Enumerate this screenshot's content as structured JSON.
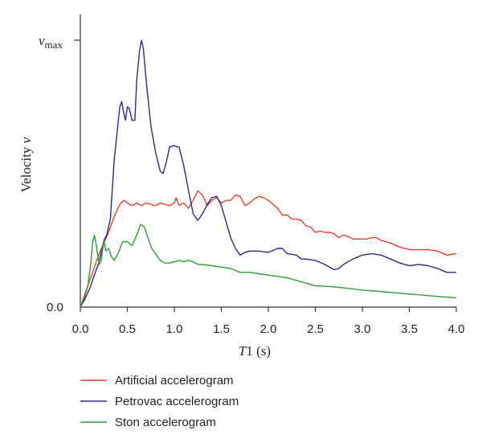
{
  "chart_data": {
    "type": "line",
    "xlabel_prefix": "T",
    "xlabel_rest": "1 (s)",
    "ylabel_prefix": "Velocity ",
    "ylabel_var": "v",
    "y_top_var": "v",
    "y_top_sub": "max",
    "y_bottom_label": "0.0",
    "xlim": [
      0,
      4
    ],
    "ylim": [
      0,
      1
    ],
    "x_ticks": [
      "0.0",
      "0.5",
      "1.0",
      "1.5",
      "2.0",
      "2.5",
      "3.0",
      "3.5",
      "4.0"
    ],
    "grid": false,
    "legend_position": "bottom",
    "series": [
      {
        "name": "Artificial accelerogram",
        "color": "#e8402a",
        "points": [
          [
            0,
            0
          ],
          [
            0.05,
            0.05
          ],
          [
            0.1,
            0.1
          ],
          [
            0.15,
            0.15
          ],
          [
            0.2,
            0.2
          ],
          [
            0.25,
            0.24
          ],
          [
            0.3,
            0.28
          ],
          [
            0.35,
            0.33
          ],
          [
            0.4,
            0.37
          ],
          [
            0.43,
            0.39
          ],
          [
            0.47,
            0.4
          ],
          [
            0.5,
            0.39
          ],
          [
            0.55,
            0.38
          ],
          [
            0.6,
            0.39
          ],
          [
            0.65,
            0.38
          ],
          [
            0.7,
            0.39
          ],
          [
            0.75,
            0.385
          ],
          [
            0.8,
            0.38
          ],
          [
            0.85,
            0.39
          ],
          [
            0.9,
            0.385
          ],
          [
            0.95,
            0.38
          ],
          [
            1.0,
            0.39
          ],
          [
            1.02,
            0.41
          ],
          [
            1.05,
            0.38
          ],
          [
            1.1,
            0.39
          ],
          [
            1.15,
            0.37
          ],
          [
            1.2,
            0.4
          ],
          [
            1.25,
            0.435
          ],
          [
            1.3,
            0.42
          ],
          [
            1.35,
            0.38
          ],
          [
            1.4,
            0.4
          ],
          [
            1.45,
            0.41
          ],
          [
            1.5,
            0.39
          ],
          [
            1.55,
            0.4
          ],
          [
            1.6,
            0.4
          ],
          [
            1.65,
            0.42
          ],
          [
            1.7,
            0.415
          ],
          [
            1.75,
            0.38
          ],
          [
            1.8,
            0.39
          ],
          [
            1.85,
            0.405
          ],
          [
            1.9,
            0.415
          ],
          [
            1.95,
            0.41
          ],
          [
            2.0,
            0.4
          ],
          [
            2.05,
            0.385
          ],
          [
            2.1,
            0.37
          ],
          [
            2.15,
            0.345
          ],
          [
            2.2,
            0.345
          ],
          [
            2.25,
            0.33
          ],
          [
            2.3,
            0.33
          ],
          [
            2.35,
            0.325
          ],
          [
            2.4,
            0.305
          ],
          [
            2.45,
            0.3
          ],
          [
            2.5,
            0.28
          ],
          [
            2.55,
            0.285
          ],
          [
            2.6,
            0.28
          ],
          [
            2.65,
            0.28
          ],
          [
            2.7,
            0.275
          ],
          [
            2.75,
            0.26
          ],
          [
            2.8,
            0.27
          ],
          [
            2.85,
            0.265
          ],
          [
            2.9,
            0.255
          ],
          [
            2.95,
            0.255
          ],
          [
            3.0,
            0.255
          ],
          [
            3.05,
            0.255
          ],
          [
            3.1,
            0.26
          ],
          [
            3.15,
            0.26
          ],
          [
            3.2,
            0.25
          ],
          [
            3.3,
            0.24
          ],
          [
            3.4,
            0.225
          ],
          [
            3.5,
            0.215
          ],
          [
            3.6,
            0.215
          ],
          [
            3.7,
            0.215
          ],
          [
            3.8,
            0.21
          ],
          [
            3.9,
            0.195
          ],
          [
            4.0,
            0.2
          ]
        ]
      },
      {
        "name": "Petrovac accelerogram",
        "color": "#2a2a8c",
        "points": [
          [
            0,
            0
          ],
          [
            0.05,
            0.03
          ],
          [
            0.1,
            0.07
          ],
          [
            0.15,
            0.12
          ],
          [
            0.2,
            0.17
          ],
          [
            0.25,
            0.25
          ],
          [
            0.28,
            0.27
          ],
          [
            0.32,
            0.33
          ],
          [
            0.36,
            0.55
          ],
          [
            0.39,
            0.65
          ],
          [
            0.42,
            0.75
          ],
          [
            0.44,
            0.77
          ],
          [
            0.46,
            0.73
          ],
          [
            0.48,
            0.7
          ],
          [
            0.5,
            0.75
          ],
          [
            0.52,
            0.745
          ],
          [
            0.55,
            0.7
          ],
          [
            0.58,
            0.7
          ],
          [
            0.6,
            0.85
          ],
          [
            0.63,
            0.96
          ],
          [
            0.65,
            1.0
          ],
          [
            0.67,
            0.97
          ],
          [
            0.7,
            0.85
          ],
          [
            0.75,
            0.68
          ],
          [
            0.8,
            0.58
          ],
          [
            0.85,
            0.51
          ],
          [
            0.88,
            0.5
          ],
          [
            0.92,
            0.55
          ],
          [
            0.95,
            0.6
          ],
          [
            1.0,
            0.605
          ],
          [
            1.03,
            0.6
          ],
          [
            1.05,
            0.6
          ],
          [
            1.1,
            0.53
          ],
          [
            1.15,
            0.44
          ],
          [
            1.2,
            0.35
          ],
          [
            1.25,
            0.325
          ],
          [
            1.3,
            0.35
          ],
          [
            1.35,
            0.385
          ],
          [
            1.4,
            0.41
          ],
          [
            1.45,
            0.415
          ],
          [
            1.5,
            0.38
          ],
          [
            1.55,
            0.32
          ],
          [
            1.6,
            0.26
          ],
          [
            1.65,
            0.22
          ],
          [
            1.7,
            0.195
          ],
          [
            1.75,
            0.205
          ],
          [
            1.8,
            0.21
          ],
          [
            1.9,
            0.21
          ],
          [
            2.0,
            0.205
          ],
          [
            2.1,
            0.22
          ],
          [
            2.15,
            0.22
          ],
          [
            2.2,
            0.2
          ],
          [
            2.3,
            0.195
          ],
          [
            2.35,
            0.18
          ],
          [
            2.4,
            0.18
          ],
          [
            2.5,
            0.175
          ],
          [
            2.6,
            0.16
          ],
          [
            2.7,
            0.14
          ],
          [
            2.75,
            0.145
          ],
          [
            2.8,
            0.16
          ],
          [
            2.9,
            0.18
          ],
          [
            3.0,
            0.195
          ],
          [
            3.1,
            0.2
          ],
          [
            3.2,
            0.195
          ],
          [
            3.3,
            0.18
          ],
          [
            3.4,
            0.165
          ],
          [
            3.5,
            0.155
          ],
          [
            3.6,
            0.16
          ],
          [
            3.7,
            0.155
          ],
          [
            3.8,
            0.145
          ],
          [
            3.9,
            0.13
          ],
          [
            4.0,
            0.13
          ]
        ]
      },
      {
        "name": "Ston accelerogram",
        "color": "#2e9c3a",
        "points": [
          [
            0,
            0
          ],
          [
            0.05,
            0.04
          ],
          [
            0.08,
            0.08
          ],
          [
            0.11,
            0.16
          ],
          [
            0.13,
            0.24
          ],
          [
            0.15,
            0.27
          ],
          [
            0.17,
            0.23
          ],
          [
            0.2,
            0.16
          ],
          [
            0.22,
            0.17
          ],
          [
            0.25,
            0.25
          ],
          [
            0.27,
            0.21
          ],
          [
            0.3,
            0.22
          ],
          [
            0.33,
            0.19
          ],
          [
            0.36,
            0.175
          ],
          [
            0.4,
            0.2
          ],
          [
            0.45,
            0.245
          ],
          [
            0.5,
            0.245
          ],
          [
            0.55,
            0.23
          ],
          [
            0.6,
            0.27
          ],
          [
            0.64,
            0.31
          ],
          [
            0.68,
            0.3
          ],
          [
            0.72,
            0.26
          ],
          [
            0.76,
            0.22
          ],
          [
            0.8,
            0.2
          ],
          [
            0.85,
            0.175
          ],
          [
            0.9,
            0.165
          ],
          [
            0.95,
            0.165
          ],
          [
            1.0,
            0.17
          ],
          [
            1.05,
            0.175
          ],
          [
            1.1,
            0.17
          ],
          [
            1.15,
            0.175
          ],
          [
            1.2,
            0.17
          ],
          [
            1.25,
            0.16
          ],
          [
            1.3,
            0.16
          ],
          [
            1.4,
            0.155
          ],
          [
            1.5,
            0.15
          ],
          [
            1.6,
            0.145
          ],
          [
            1.7,
            0.13
          ],
          [
            1.8,
            0.13
          ],
          [
            1.9,
            0.125
          ],
          [
            2.0,
            0.12
          ],
          [
            2.1,
            0.115
          ],
          [
            2.2,
            0.11
          ],
          [
            2.3,
            0.1
          ],
          [
            2.4,
            0.09
          ],
          [
            2.5,
            0.08
          ],
          [
            2.6,
            0.078
          ],
          [
            2.7,
            0.076
          ],
          [
            2.8,
            0.072
          ],
          [
            2.9,
            0.068
          ],
          [
            3.0,
            0.064
          ],
          [
            3.2,
            0.058
          ],
          [
            3.4,
            0.052
          ],
          [
            3.6,
            0.046
          ],
          [
            3.8,
            0.04
          ],
          [
            4.0,
            0.035
          ]
        ]
      }
    ]
  }
}
